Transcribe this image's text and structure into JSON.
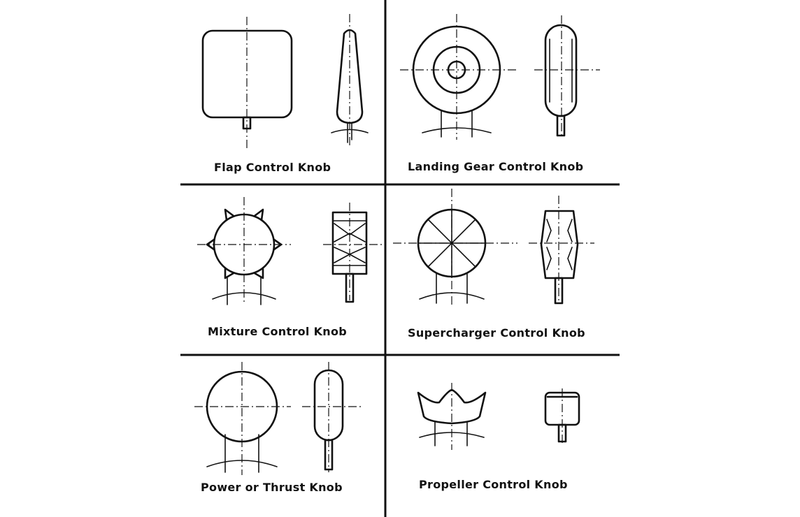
{
  "colors": {
    "ink": "#111111",
    "background": "#ffffff"
  },
  "labels": {
    "flap": "Flap Control Knob",
    "landing_gear": "Landing Gear Control Knob",
    "mixture": "Mixture Control Knob",
    "supercharger": "Supercharger Control Knob",
    "power_thrust": "Power or Thrust Knob",
    "propeller": "Propeller Control Knob"
  }
}
